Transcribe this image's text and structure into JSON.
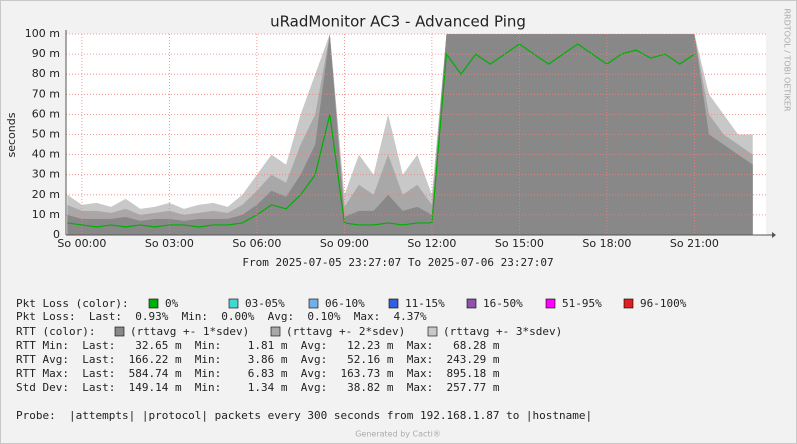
{
  "chart_data": {
    "type": "area",
    "title": "uRadMonitor AC3 - Advanced Ping",
    "y_label": "seconds",
    "side_label": "RRDTOOL / TOBI OETIKER",
    "range_label": "From 2025-07-05 23:27:07 To 2025-07-06 23:27:07",
    "xlim": [
      -0.545,
      23.455
    ],
    "xticks": [
      {
        "value": 0,
        "label": "So 00:00"
      },
      {
        "value": 3,
        "label": "So 03:00"
      },
      {
        "value": 6,
        "label": "So 06:00"
      },
      {
        "value": 9,
        "label": "So 09:00"
      },
      {
        "value": 12,
        "label": "So 12:00"
      },
      {
        "value": 15,
        "label": "So 15:00"
      },
      {
        "value": 18,
        "label": "So 18:00"
      },
      {
        "value": 21,
        "label": "So 21:00"
      }
    ],
    "ylim": [
      0,
      0.1
    ],
    "yticks": [
      {
        "value": 0,
        "label": "0"
      },
      {
        "value": 0.01,
        "label": "10 m"
      },
      {
        "value": 0.02,
        "label": "20 m"
      },
      {
        "value": 0.03,
        "label": "30 m"
      },
      {
        "value": 0.04,
        "label": "40 m"
      },
      {
        "value": 0.05,
        "label": "50 m"
      },
      {
        "value": 0.06,
        "label": "60 m"
      },
      {
        "value": 0.07,
        "label": "70 m"
      },
      {
        "value": 0.08,
        "label": "80 m"
      },
      {
        "value": 0.09,
        "label": "90 m"
      },
      {
        "value": 0.1,
        "label": "100 m"
      }
    ],
    "grid": true,
    "x": [
      -0.5,
      0,
      0.5,
      1,
      1.5,
      2,
      2.5,
      3,
      3.5,
      4,
      4.5,
      5,
      5.5,
      6,
      6.5,
      7,
      7.5,
      8,
      8.5,
      9,
      9.5,
      10,
      10.5,
      11,
      11.5,
      12,
      12.5,
      13,
      13.5,
      14,
      14.5,
      15,
      15.5,
      16,
      16.5,
      17,
      17.5,
      18,
      18.5,
      19,
      19.5,
      20,
      20.5,
      21,
      21.5,
      22,
      22.5,
      23
    ],
    "series": [
      {
        "name": "(rttavg +- 3*sdev)",
        "color": "#c8c8c8",
        "values": [
          0.02,
          0.015,
          0.016,
          0.014,
          0.018,
          0.013,
          0.014,
          0.016,
          0.013,
          0.015,
          0.016,
          0.014,
          0.02,
          0.03,
          0.04,
          0.035,
          0.06,
          0.08,
          0.1,
          0.02,
          0.04,
          0.03,
          0.06,
          0.03,
          0.04,
          0.02,
          0.1,
          0.1,
          0.1,
          0.1,
          0.1,
          0.1,
          0.1,
          0.1,
          0.1,
          0.1,
          0.1,
          0.1,
          0.1,
          0.1,
          0.1,
          0.1,
          0.1,
          0.1,
          0.07,
          0.06,
          0.05,
          0.05
        ]
      },
      {
        "name": "(rttavg +- 2*sdev)",
        "color": "#a8a8a8",
        "values": [
          0.015,
          0.012,
          0.012,
          0.011,
          0.013,
          0.01,
          0.011,
          0.012,
          0.01,
          0.011,
          0.012,
          0.011,
          0.015,
          0.022,
          0.03,
          0.026,
          0.045,
          0.06,
          0.1,
          0.014,
          0.025,
          0.02,
          0.04,
          0.02,
          0.025,
          0.015,
          0.1,
          0.1,
          0.1,
          0.1,
          0.1,
          0.1,
          0.1,
          0.1,
          0.1,
          0.1,
          0.1,
          0.1,
          0.1,
          0.1,
          0.1,
          0.1,
          0.1,
          0.1,
          0.06,
          0.05,
          0.045,
          0.04
        ]
      },
      {
        "name": "(rttavg +- 1*sdev)",
        "color": "#888888",
        "values": [
          0.01,
          0.008,
          0.008,
          0.008,
          0.009,
          0.007,
          0.008,
          0.008,
          0.007,
          0.008,
          0.008,
          0.008,
          0.01,
          0.015,
          0.022,
          0.019,
          0.03,
          0.045,
          0.1,
          0.009,
          0.012,
          0.012,
          0.02,
          0.012,
          0.014,
          0.01,
          0.1,
          0.1,
          0.1,
          0.1,
          0.1,
          0.1,
          0.1,
          0.1,
          0.1,
          0.1,
          0.1,
          0.1,
          0.1,
          0.1,
          0.1,
          0.1,
          0.1,
          0.1,
          0.05,
          0.045,
          0.04,
          0.035
        ]
      },
      {
        "color": "#00b000",
        "line": true,
        "values": [
          0.006,
          0.005,
          0.004,
          0.005,
          0.004,
          0.005,
          0.004,
          0.005,
          0.005,
          0.004,
          0.005,
          0.005,
          0.006,
          0.01,
          0.015,
          0.013,
          0.02,
          0.03,
          0.06,
          0.006,
          0.005,
          0.005,
          0.006,
          0.005,
          0.006,
          0.006,
          0.09,
          0.08,
          0.09,
          0.085,
          0.09,
          0.095,
          0.09,
          0.085,
          0.09,
          0.095,
          0.09,
          0.085,
          0.09,
          0.092,
          0.088,
          0.09,
          0.085,
          0.09,
          null,
          null,
          null,
          null
        ]
      }
    ],
    "loss_title": "Pkt Loss (color):",
    "loss_colors": [
      {
        "label": "0%",
        "color": "#00b000"
      },
      {
        "label": "03-05%",
        "color": "#40d8d0"
      },
      {
        "label": "06-10%",
        "color": "#70b0e8"
      },
      {
        "label": "11-15%",
        "color": "#3060e0"
      },
      {
        "label": "16-50%",
        "color": "#9050b0"
      },
      {
        "label": "51-95%",
        "color": "#ff00ff"
      },
      {
        "label": "96-100%",
        "color": "#e02020"
      }
    ],
    "rtt_title": "RTT (color):",
    "stats": [
      "Pkt Loss:  Last:  0.93%  Min:  0.00%  Avg:  0.10%  Max:  4.37%",
      "RTT Min:  Last:   32.65 m  Min:    1.81 m  Avg:   12.23 m  Max:   68.28 m",
      "RTT Avg:  Last:  166.22 m  Min:    3.86 m  Avg:   52.16 m  Max:  243.29 m",
      "RTT Max:  Last:  584.74 m  Min:    6.83 m  Avg:  163.73 m  Max:  895.18 m",
      "Std Dev:  Last:  149.14 m  Min:    1.34 m  Avg:   38.82 m  Max:  257.77 m"
    ],
    "probe": "Probe:  |attempts| |protocol| packets every 300 seconds from 192.168.1.87 to |hostname|",
    "footer": "Generated by Cacti®"
  }
}
